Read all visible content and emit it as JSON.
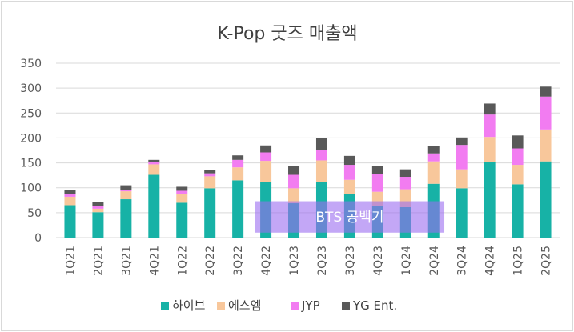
{
  "chart_data": {
    "type": "bar",
    "stacked": true,
    "title": "K-Pop 굿즈 매출액",
    "categories": [
      "1Q21",
      "2Q21",
      "3Q21",
      "4Q21",
      "1Q22",
      "2Q22",
      "3Q22",
      "4Q22",
      "1Q23",
      "2Q23",
      "3Q23",
      "4Q23",
      "1Q24",
      "2Q24",
      "3Q24",
      "4Q24",
      "1Q25",
      "2Q25"
    ],
    "series": [
      {
        "name": "하이브",
        "color": "#17b2a6",
        "values": [
          65,
          51,
          77,
          126,
          70,
          99,
          115,
          112,
          69,
          112,
          87,
          64,
          61,
          108,
          99,
          151,
          107,
          153
        ]
      },
      {
        "name": "에스엠",
        "color": "#f8c79b",
        "values": [
          17,
          7,
          16,
          21,
          17,
          24,
          26,
          42,
          30,
          43,
          29,
          28,
          36,
          45,
          38,
          51,
          39,
          64
        ]
      },
      {
        "name": "JYP",
        "color": "#f27cf1",
        "values": [
          5,
          5,
          2,
          5,
          7,
          6,
          15,
          17,
          27,
          20,
          30,
          35,
          25,
          16,
          49,
          45,
          33,
          66
        ]
      },
      {
        "name": "YG Ent.",
        "color": "#595959",
        "values": [
          8,
          8,
          10,
          4,
          8,
          6,
          9,
          14,
          18,
          25,
          18,
          16,
          15,
          15,
          15,
          22,
          26,
          20
        ]
      }
    ],
    "ylim": [
      0,
      350
    ],
    "yticks": [
      0,
      50,
      100,
      150,
      200,
      250,
      300,
      350
    ],
    "grid": true,
    "legend_position": "bottom",
    "annotation": {
      "text": "BTS 공백기",
      "from_category": "4Q22",
      "to_category": "2Q24",
      "y_range": [
        10,
        73
      ]
    }
  }
}
